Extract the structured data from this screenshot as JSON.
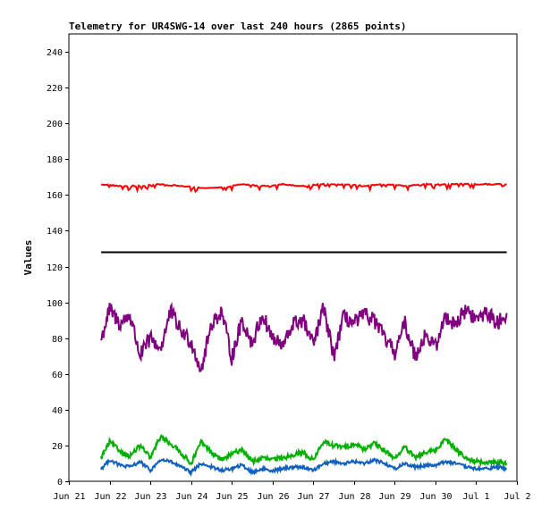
{
  "chart_data": {
    "type": "line",
    "title": "Telemetry for UR4SWG-14 over last 240 hours (2865 points)",
    "xlabel": "",
    "ylabel": "Values",
    "xlim": [
      "2025-06-21",
      "2025-07-02"
    ],
    "ylim": [
      0,
      250
    ],
    "x_ticks": [
      "Jun 21",
      "Jun 22",
      "Jun 23",
      "Jun 24",
      "Jun 25",
      "Jun 26",
      "Jun 27",
      "Jun 28",
      "Jun 29",
      "Jun 30",
      "Jul 1",
      "Jul 2"
    ],
    "y_ticks": [
      0,
      20,
      40,
      60,
      80,
      100,
      120,
      140,
      160,
      180,
      200,
      220,
      240
    ],
    "grid": false,
    "legend": "none",
    "x_start": "2025-06-21T19:00",
    "series": [
      {
        "color": "#ff0000",
        "x": [
          "2025-06-21T19:00",
          "2025-06-22T06:00",
          "2025-06-22T18:00",
          "2025-06-23T06:00",
          "2025-06-23T18:00",
          "2025-06-24T06:00",
          "2025-06-24T18:00",
          "2025-06-25T06:00",
          "2025-06-25T18:00",
          "2025-06-26T06:00",
          "2025-06-26T18:00",
          "2025-06-27T06:00",
          "2025-06-27T18:00",
          "2025-06-28T06:00",
          "2025-06-28T18:00",
          "2025-06-29T06:00",
          "2025-06-29T18:00",
          "2025-06-30T06:00",
          "2025-06-30T18:00",
          "2025-07-01T06:00",
          "2025-07-01T18:00"
        ],
        "values": [
          166,
          165,
          165,
          166,
          165,
          164,
          164,
          166,
          165,
          166,
          165,
          166,
          166,
          165,
          166,
          165,
          166,
          166,
          166,
          166,
          166
        ]
      },
      {
        "color": "#000000",
        "x": [
          "2025-06-21T19:00",
          "2025-07-01T18:00"
        ],
        "values": [
          128,
          128
        ]
      },
      {
        "color": "#800080",
        "x": [
          "2025-06-21T19:00",
          "2025-06-22T00:00",
          "2025-06-22T06:00",
          "2025-06-22T12:00",
          "2025-06-22T18:00",
          "2025-06-23T00:00",
          "2025-06-23T06:00",
          "2025-06-23T12:00",
          "2025-06-23T18:00",
          "2025-06-24T00:00",
          "2025-06-24T06:00",
          "2025-06-24T12:00",
          "2025-06-24T18:00",
          "2025-06-25T00:00",
          "2025-06-25T06:00",
          "2025-06-25T12:00",
          "2025-06-25T18:00",
          "2025-06-26T00:00",
          "2025-06-26T06:00",
          "2025-06-26T12:00",
          "2025-06-26T18:00",
          "2025-06-27T00:00",
          "2025-06-27T06:00",
          "2025-06-27T12:00",
          "2025-06-27T18:00",
          "2025-06-28T00:00",
          "2025-06-28T06:00",
          "2025-06-28T12:00",
          "2025-06-28T18:00",
          "2025-06-29T00:00",
          "2025-06-29T06:00",
          "2025-06-29T12:00",
          "2025-06-29T18:00",
          "2025-06-30T00:00",
          "2025-06-30T06:00",
          "2025-06-30T12:00",
          "2025-06-30T18:00",
          "2025-07-01T00:00",
          "2025-07-01T06:00",
          "2025-07-01T12:00",
          "2025-07-01T18:00"
        ],
        "values": [
          79,
          96,
          88,
          93,
          70,
          80,
          74,
          95,
          84,
          78,
          62,
          88,
          95,
          69,
          90,
          77,
          93,
          80,
          75,
          88,
          90,
          76,
          97,
          70,
          92,
          88,
          93,
          90,
          80,
          72,
          88,
          70,
          82,
          75,
          92,
          88,
          96,
          90,
          95,
          88,
          94
        ]
      },
      {
        "color": "#00b000",
        "x": [
          "2025-06-21T19:00",
          "2025-06-22T00:00",
          "2025-06-22T06:00",
          "2025-06-22T12:00",
          "2025-06-22T18:00",
          "2025-06-23T00:00",
          "2025-06-23T06:00",
          "2025-06-23T12:00",
          "2025-06-23T18:00",
          "2025-06-24T00:00",
          "2025-06-24T06:00",
          "2025-06-24T12:00",
          "2025-06-24T18:00",
          "2025-06-25T00:00",
          "2025-06-25T06:00",
          "2025-06-25T12:00",
          "2025-06-25T18:00",
          "2025-06-26T00:00",
          "2025-06-26T06:00",
          "2025-06-26T12:00",
          "2025-06-26T18:00",
          "2025-06-27T00:00",
          "2025-06-27T06:00",
          "2025-06-27T12:00",
          "2025-06-27T18:00",
          "2025-06-28T00:00",
          "2025-06-28T06:00",
          "2025-06-28T12:00",
          "2025-06-28T18:00",
          "2025-06-29T00:00",
          "2025-06-29T06:00",
          "2025-06-29T12:00",
          "2025-06-29T18:00",
          "2025-06-30T00:00",
          "2025-06-30T06:00",
          "2025-06-30T12:00",
          "2025-06-30T18:00",
          "2025-07-01T00:00",
          "2025-07-01T06:00",
          "2025-07-01T12:00",
          "2025-07-01T18:00"
        ],
        "values": [
          13,
          22,
          17,
          14,
          20,
          13,
          25,
          21,
          16,
          10,
          22,
          16,
          12,
          15,
          18,
          11,
          13,
          12,
          13,
          15,
          16,
          12,
          22,
          20,
          19,
          21,
          18,
          21,
          17,
          13,
          19,
          13,
          16,
          17,
          24,
          18,
          13,
          11,
          10,
          11,
          10
        ]
      },
      {
        "color": "#1060c0",
        "x": [
          "2025-06-21T19:00",
          "2025-06-22T00:00",
          "2025-06-22T06:00",
          "2025-06-22T12:00",
          "2025-06-22T18:00",
          "2025-06-23T00:00",
          "2025-06-23T06:00",
          "2025-06-23T12:00",
          "2025-06-23T18:00",
          "2025-06-24T00:00",
          "2025-06-24T06:00",
          "2025-06-24T12:00",
          "2025-06-24T18:00",
          "2025-06-25T00:00",
          "2025-06-25T06:00",
          "2025-06-25T12:00",
          "2025-06-25T18:00",
          "2025-06-26T00:00",
          "2025-06-26T06:00",
          "2025-06-26T12:00",
          "2025-06-26T18:00",
          "2025-06-27T00:00",
          "2025-06-27T06:00",
          "2025-06-27T12:00",
          "2025-06-27T18:00",
          "2025-06-28T00:00",
          "2025-06-28T06:00",
          "2025-06-28T12:00",
          "2025-06-28T18:00",
          "2025-06-29T00:00",
          "2025-06-29T06:00",
          "2025-06-29T12:00",
          "2025-06-29T18:00",
          "2025-06-30T00:00",
          "2025-06-30T06:00",
          "2025-06-30T12:00",
          "2025-06-30T18:00",
          "2025-07-01T00:00",
          "2025-07-01T06:00",
          "2025-07-01T12:00",
          "2025-07-01T18:00"
        ],
        "values": [
          7,
          12,
          9,
          8,
          11,
          6,
          12,
          11,
          8,
          5,
          10,
          8,
          6,
          7,
          9,
          5,
          7,
          6,
          7,
          8,
          8,
          6,
          10,
          11,
          10,
          11,
          10,
          12,
          10,
          7,
          10,
          8,
          9,
          9,
          11,
          10,
          8,
          7,
          7,
          8,
          7
        ]
      }
    ]
  }
}
